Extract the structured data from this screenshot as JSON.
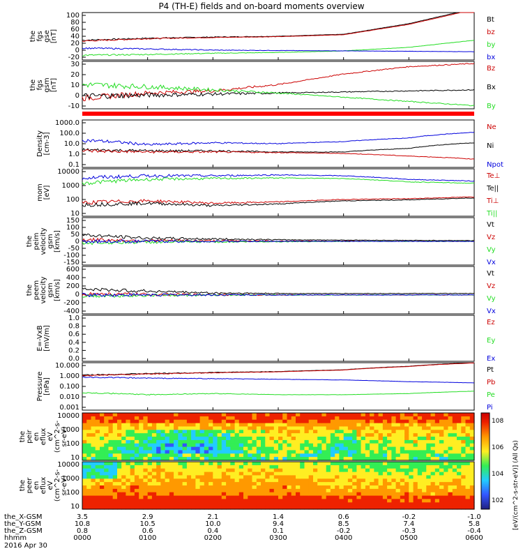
{
  "title": "P4 (TH-E) fields and on-board moments overview",
  "colors": {
    "black": "#000000",
    "red": "#cc0000",
    "green": "#22dd22",
    "blue": "#0000dd",
    "bar": "#ff0000"
  },
  "chart_data": [
    {
      "type": "line",
      "id": "fgs-gse",
      "ylabel_lines": [
        "the",
        "fgs",
        "gse",
        "[nT]"
      ],
      "yticks": [
        "100",
        "80",
        "60",
        "40",
        "20",
        "0",
        "-20"
      ],
      "yrange": [
        -20,
        100
      ],
      "legend": [
        "Bt",
        "bz",
        "by",
        "bx"
      ],
      "legend_colors": [
        "black",
        "red",
        "green",
        "blue"
      ],
      "x_hours": [
        0,
        1,
        2,
        3,
        4,
        5,
        6
      ],
      "series": [
        {
          "color": "black",
          "values": [
            30,
            35,
            38,
            40,
            45,
            72,
            110
          ]
        },
        {
          "color": "red",
          "values": [
            28,
            34,
            37,
            39,
            44,
            70,
            108
          ]
        },
        {
          "color": "green",
          "values": [
            -8,
            -6,
            -3,
            -1,
            3,
            12,
            30
          ]
        },
        {
          "color": "blue",
          "values": [
            10,
            8,
            5,
            4,
            3,
            2,
            1
          ]
        }
      ]
    },
    {
      "type": "line",
      "id": "fgs-gsm",
      "ylabel_lines": [
        "the",
        "fgs",
        "gsm",
        "[nT]"
      ],
      "yticks": [
        "30",
        "20",
        "10",
        "0",
        "-10"
      ],
      "yrange": [
        -15,
        30
      ],
      "legend": [
        "Bz",
        "Bx",
        "By"
      ],
      "legend_colors": [
        "red",
        "black",
        "green"
      ],
      "x_hours": [
        0,
        1,
        2,
        3,
        4,
        5,
        6
      ],
      "series": [
        {
          "color": "red",
          "values": [
            -5,
            0,
            2,
            8,
            18,
            25,
            28
          ]
        },
        {
          "color": "black",
          "values": [
            -3,
            -2,
            -1,
            0,
            1,
            2,
            3
          ]
        },
        {
          "color": "green",
          "values": [
            8,
            6,
            3,
            0,
            -4,
            -8,
            -12
          ]
        }
      ]
    },
    {
      "type": "line",
      "id": "density",
      "ylabel_lines": [
        "Density",
        "[cm-3]"
      ],
      "yticks": [
        "1000.0",
        "100.0",
        "10.0",
        "1.0",
        "0.1"
      ],
      "ylog": true,
      "yrange": [
        0.1,
        1000
      ],
      "legend": [
        "Ne",
        "Ni",
        "Npot"
      ],
      "legend_colors": [
        "red",
        "black",
        "blue"
      ],
      "x_hours": [
        0,
        1,
        2,
        3,
        4,
        5,
        6
      ],
      "series": [
        {
          "color": "blue",
          "values": [
            20,
            8,
            12,
            10,
            15,
            30,
            90
          ]
        },
        {
          "color": "black",
          "values": [
            3,
            2.5,
            2.5,
            2,
            2,
            4,
            12
          ]
        },
        {
          "color": "red",
          "values": [
            2.5,
            2,
            2,
            1.8,
            1.5,
            0.9,
            0.5
          ]
        }
      ]
    },
    {
      "type": "line",
      "id": "temperature",
      "ylabel_lines": [
        "mom",
        "[eV]"
      ],
      "yticks": [
        "10000",
        "1000",
        "100",
        "10"
      ],
      "ylog": true,
      "yrange": [
        20,
        10000
      ],
      "legend": [
        "Te⊥",
        "Te||",
        "Ti⊥",
        "Ti||"
      ],
      "legend_colors": [
        "red",
        "black",
        "red",
        "green"
      ],
      "x_hours": [
        0,
        1,
        2,
        3,
        4,
        5,
        6
      ],
      "series": [
        {
          "color": "blue",
          "values": [
            3000,
            4000,
            4000,
            4500,
            4000,
            2500,
            2000
          ]
        },
        {
          "color": "green",
          "values": [
            1500,
            2500,
            2800,
            3000,
            2800,
            1800,
            1500
          ]
        },
        {
          "color": "red",
          "values": [
            120,
            150,
            110,
            130,
            180,
            200,
            250
          ]
        },
        {
          "color": "black",
          "values": [
            90,
            110,
            80,
            100,
            150,
            170,
            220
          ]
        }
      ]
    },
    {
      "type": "line",
      "id": "peim-velocity",
      "ylabel_lines": [
        "the",
        "peim",
        "velocity",
        "gsm",
        "[km/s]"
      ],
      "yticks": [
        "150",
        "100",
        "50",
        "0",
        "-50",
        "-100",
        "-150"
      ],
      "yrange": [
        -150,
        150
      ],
      "legend": [
        "Vt",
        "Vz",
        "Vy",
        "Vx"
      ],
      "legend_colors": [
        "black",
        "red",
        "green",
        "blue"
      ],
      "x_hours": [
        0,
        1,
        2,
        3,
        4,
        5,
        6
      ],
      "series": [
        {
          "color": "black",
          "values": [
            40,
            20,
            15,
            10,
            8,
            6,
            5
          ]
        },
        {
          "color": "red",
          "values": [
            10,
            5,
            3,
            2,
            1,
            0,
            0
          ]
        },
        {
          "color": "green",
          "values": [
            -10,
            -5,
            -3,
            -2,
            -1,
            0,
            0
          ]
        },
        {
          "color": "blue",
          "values": [
            0,
            0,
            0,
            0,
            0,
            0,
            0
          ]
        }
      ]
    },
    {
      "type": "line",
      "id": "peem-velocity",
      "ylabel_lines": [
        "the",
        "peem",
        "velocity",
        "gsm",
        "[km/s]"
      ],
      "yticks": [
        "600",
        "400",
        "200",
        "0",
        "-200",
        "-400"
      ],
      "yrange": [
        -400,
        600
      ],
      "legend": [
        "Vt",
        "Vz",
        "Vy",
        "Vx"
      ],
      "legend_colors": [
        "black",
        "red",
        "green",
        "blue"
      ],
      "x_hours": [
        0,
        1,
        2,
        3,
        4,
        5,
        6
      ],
      "series": [
        {
          "color": "black",
          "values": [
            120,
            80,
            40,
            30,
            30,
            30,
            30
          ]
        },
        {
          "color": "red",
          "values": [
            20,
            10,
            5,
            0,
            0,
            0,
            0
          ]
        },
        {
          "color": "green",
          "values": [
            -20,
            -10,
            -5,
            0,
            0,
            0,
            0
          ]
        },
        {
          "color": "blue",
          "values": [
            0,
            0,
            0,
            0,
            0,
            0,
            0
          ]
        }
      ]
    },
    {
      "type": "line",
      "id": "efield",
      "ylabel_lines": [
        "E=-VxB",
        "[mV/m]"
      ],
      "yticks": [
        "1.0",
        "0.8",
        "0.6",
        "0.4",
        "0.2",
        "0.0"
      ],
      "yrange": [
        0,
        1
      ],
      "legend": [
        "Ez",
        "Ey",
        "Ex"
      ],
      "legend_colors": [
        "red",
        "green",
        "blue"
      ],
      "series": []
    },
    {
      "type": "line",
      "id": "pressure",
      "ylabel_lines": [
        "Pressure",
        "[nPa]"
      ],
      "yticks": [
        "10.000",
        "1.000",
        "0.100",
        "0.010",
        "0.001"
      ],
      "ylog": true,
      "yrange": [
        0.001,
        10
      ],
      "legend": [
        "Pt",
        "Pb",
        "Pe",
        "Pi"
      ],
      "legend_colors": [
        "black",
        "red",
        "green",
        "blue"
      ],
      "x_hours": [
        0,
        1,
        2,
        3,
        4,
        5,
        6
      ],
      "series": [
        {
          "color": "black",
          "values": [
            0.9,
            1.2,
            1.5,
            1.8,
            2.5,
            5,
            10
          ]
        },
        {
          "color": "red",
          "values": [
            0.8,
            1.1,
            1.4,
            1.7,
            2.4,
            4.8,
            9.5
          ]
        },
        {
          "color": "blue",
          "values": [
            0.6,
            0.5,
            0.45,
            0.4,
            0.35,
            0.25,
            0.2
          ]
        },
        {
          "color": "green",
          "values": [
            0.03,
            0.02,
            0.025,
            0.02,
            0.02,
            0.025,
            0.04
          ]
        }
      ]
    },
    {
      "type": "heatmap",
      "id": "peir",
      "ylabel_lines": [
        "the",
        "peir",
        "en",
        "eflux",
        "eV",
        "(cm^2-s-",
        "sr-eV)"
      ],
      "yticks": [
        "10000",
        "1000",
        "100",
        "10"
      ],
      "ylog": true
    },
    {
      "type": "heatmap",
      "id": "peer",
      "ylabel_lines": [
        "the",
        "peer",
        "en",
        "eflux",
        "eV",
        "(cm^2-s-",
        "sr-eV)"
      ],
      "yticks": [
        "10000",
        "1000",
        "100",
        "10"
      ],
      "ylog": true
    }
  ],
  "colorbar": {
    "label": "[eV/(cm^2-s-str-eV)] (All Qs)",
    "ticks": [
      "10^8",
      "10^6",
      "10^4",
      "10^2"
    ]
  },
  "xaxis": {
    "rows": [
      {
        "label": "the_X-GSM",
        "values": [
          "3.5",
          "2.9",
          "2.1",
          "1.4",
          "0.6",
          "-0.2",
          "-1.0"
        ]
      },
      {
        "label": "the_Y-GSM",
        "values": [
          "10.8",
          "10.5",
          "10.0",
          "9.4",
          "8.5",
          "7.4",
          "5.8"
        ]
      },
      {
        "label": "the_Z-GSM",
        "values": [
          "0.8",
          "0.6",
          "0.4",
          "0.1",
          "-0.2",
          "-0.3",
          "-0.4"
        ]
      },
      {
        "label": "hhmm",
        "values": [
          "0000",
          "0100",
          "0200",
          "0300",
          "0400",
          "0500",
          "0600"
        ]
      }
    ],
    "date": "2016 Apr 30"
  }
}
